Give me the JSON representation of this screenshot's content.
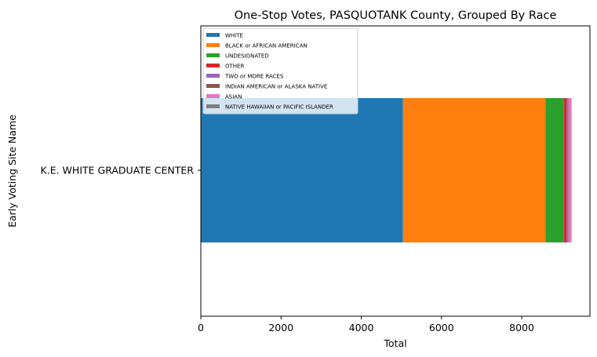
{
  "chart_data": {
    "type": "bar",
    "orientation": "horizontal",
    "stacked": true,
    "title": "One-Stop Votes, PASQUOTANK County, Grouped By Race",
    "xlabel": "Total",
    "ylabel": "Early Voting Site Name",
    "categories": [
      "K.E. WHITE GRADUATE CENTER"
    ],
    "xlim": [
      0,
      9700
    ],
    "xticks": [
      0,
      2000,
      4000,
      6000,
      8000
    ],
    "legend_position": "top-left",
    "grid": false,
    "series": [
      {
        "name": "WHITE",
        "color": "#1f77b4",
        "values": [
          5040
        ]
      },
      {
        "name": "BLACK or AFRICAN AMERICAN",
        "color": "#ff7f0e",
        "values": [
          3550
        ]
      },
      {
        "name": "UNDESIGNATED",
        "color": "#2ca02c",
        "values": [
          460
        ]
      },
      {
        "name": "OTHER",
        "color": "#d62728",
        "values": [
          70
        ]
      },
      {
        "name": "TWO or MORE RACES",
        "color": "#9467bd",
        "values": [
          40
        ]
      },
      {
        "name": "INDIAN AMERICAN or ALASKA NATIVE",
        "color": "#8c564b",
        "values": [
          10
        ]
      },
      {
        "name": "ASIAN",
        "color": "#e377c2",
        "values": [
          70
        ]
      },
      {
        "name": "NATIVE HAWAIIAN or PACIFIC ISLANDER",
        "color": "#7f7f7f",
        "values": [
          3
        ]
      }
    ]
  }
}
